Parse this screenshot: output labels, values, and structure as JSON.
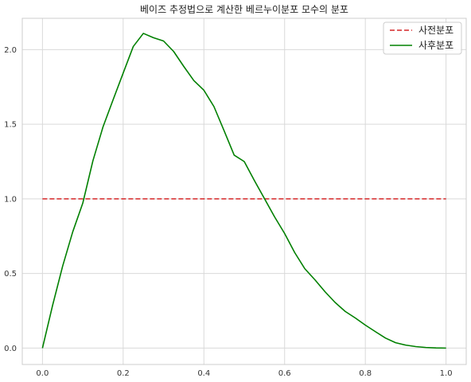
{
  "chart_data": {
    "type": "line",
    "title": "베이즈 추정법으로 계산한 베르누이분포 모수의 분포",
    "xlabel": "",
    "ylabel": "",
    "xlim": [
      -0.05,
      1.05
    ],
    "ylim": [
      -0.11,
      2.21
    ],
    "x_ticks": [
      0.0,
      0.2,
      0.4,
      0.6,
      0.8,
      1.0
    ],
    "x_tick_labels": [
      "0.0",
      "0.2",
      "0.4",
      "0.6",
      "0.8",
      "1.0"
    ],
    "y_ticks": [
      0.0,
      0.5,
      1.0,
      1.5,
      2.0
    ],
    "y_tick_labels": [
      "0.0",
      "0.5",
      "1.0",
      "1.5",
      "2.0"
    ],
    "grid": true,
    "legend_position": "top-right",
    "series": [
      {
        "name": "사전분포",
        "color": "#d62728",
        "style": "dashed",
        "x": [
          0.0,
          0.1,
          0.2,
          0.3,
          0.4,
          0.5,
          0.6,
          0.7,
          0.8,
          0.9,
          1.0
        ],
        "y": [
          1.0,
          1.0,
          1.0,
          1.0,
          1.0,
          1.0,
          1.0,
          1.0,
          1.0,
          1.0,
          1.0
        ]
      },
      {
        "name": "사후분포",
        "color": "#008000",
        "style": "solid",
        "x": [
          0.0,
          0.025,
          0.05,
          0.075,
          0.1,
          0.125,
          0.15,
          0.175,
          0.2,
          0.225,
          0.25,
          0.275,
          0.3,
          0.325,
          0.35,
          0.375,
          0.4,
          0.425,
          0.45,
          0.475,
          0.5,
          0.525,
          0.55,
          0.575,
          0.6,
          0.625,
          0.65,
          0.675,
          0.7,
          0.725,
          0.75,
          0.775,
          0.8,
          0.825,
          0.85,
          0.875,
          0.9,
          0.925,
          0.95,
          0.975,
          1.0
        ],
        "y": [
          0.0,
          0.285,
          0.549,
          0.779,
          0.972,
          1.255,
          1.482,
          1.664,
          1.843,
          2.021,
          2.109,
          2.08,
          2.058,
          1.988,
          1.888,
          1.793,
          1.728,
          1.618,
          1.457,
          1.293,
          1.25,
          1.123,
          1.002,
          0.88,
          0.768,
          0.64,
          0.532,
          0.458,
          0.378,
          0.306,
          0.246,
          0.202,
          0.154,
          0.11,
          0.067,
          0.036,
          0.02,
          0.01,
          0.004,
          0.001,
          0.0
        ]
      }
    ]
  }
}
